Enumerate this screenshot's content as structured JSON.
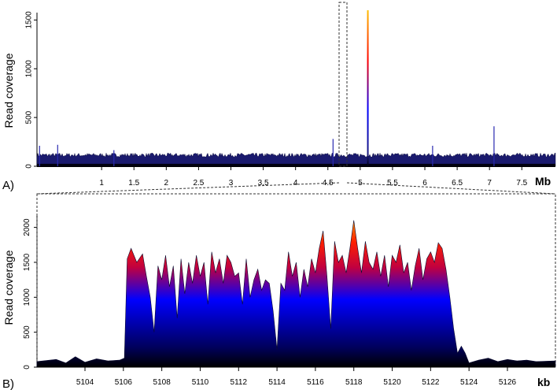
{
  "chart_data": [
    {
      "panel": "A)",
      "type": "area",
      "ylabel": "Read coverage",
      "xunit": "Mb",
      "xlim": [
        0,
        8.02
      ],
      "ylim": [
        0,
        1600
      ],
      "y_ticks": [
        0,
        500,
        1000,
        1500
      ],
      "x_ticks": [
        "1",
        "1.5",
        "2",
        "2.5",
        "3",
        "3.5",
        "4",
        "4.5",
        "5",
        "5.5",
        "6",
        "6.5",
        "7",
        "7.5"
      ],
      "baseline_coverage": 120,
      "spikes": [
        {
          "x": 0.04,
          "y": 210
        },
        {
          "x": 0.32,
          "y": 220
        },
        {
          "x": 1.19,
          "y": 165
        },
        {
          "x": 4.58,
          "y": 280
        },
        {
          "x": 6.12,
          "y": 210
        },
        {
          "x": 7.07,
          "y": 410
        }
      ],
      "peak_region": {
        "start": 5.106,
        "end": 5.123,
        "max": 1600
      },
      "gradient_colors": [
        "#000000",
        "#0000ff",
        "#ff0000",
        "#ffd700"
      ]
    },
    {
      "panel": "B)",
      "type": "area",
      "ylabel": "Read coverage",
      "xunit": "kb",
      "xlim": [
        5101.5,
        5128.5
      ],
      "ylim": [
        0,
        2300
      ],
      "y_ticks": [
        0,
        500,
        1000,
        1500,
        2000
      ],
      "x_ticks": [
        "5104",
        "5106",
        "5108",
        "5110",
        "5112",
        "5114",
        "5116",
        "5118",
        "5120",
        "5122",
        "5124",
        "5126"
      ],
      "x": [
        5101.5,
        5102.5,
        5103.0,
        5103.5,
        5104.0,
        5104.6,
        5105.2,
        5105.8,
        5106.05,
        5106.2,
        5106.4,
        5106.7,
        5107.0,
        5107.2,
        5107.4,
        5107.6,
        5107.8,
        5108.0,
        5108.2,
        5108.4,
        5108.6,
        5108.8,
        5109.0,
        5109.2,
        5109.4,
        5109.6,
        5109.8,
        5110.0,
        5110.2,
        5110.4,
        5110.6,
        5110.8,
        5111.0,
        5111.2,
        5111.4,
        5111.6,
        5111.8,
        5112.0,
        5112.2,
        5112.4,
        5112.6,
        5112.8,
        5113.0,
        5113.2,
        5113.4,
        5113.6,
        5113.8,
        5114.0,
        5114.2,
        5114.4,
        5114.6,
        5114.8,
        5115.0,
        5115.2,
        5115.4,
        5115.6,
        5115.8,
        5116.0,
        5116.2,
        5116.4,
        5116.6,
        5116.8,
        5117.0,
        5117.2,
        5117.4,
        5117.6,
        5117.8,
        5118.0,
        5118.2,
        5118.4,
        5118.6,
        5118.8,
        5119.0,
        5119.2,
        5119.4,
        5119.6,
        5119.8,
        5120.0,
        5120.2,
        5120.4,
        5120.6,
        5120.8,
        5121.0,
        5121.2,
        5121.4,
        5121.6,
        5121.8,
        5122.0,
        5122.2,
        5122.4,
        5122.6,
        5122.8,
        5123.0,
        5123.2,
        5123.4,
        5123.6,
        5123.8,
        5124.0,
        5124.5,
        5125.0,
        5125.5,
        5126.0,
        5126.5,
        5127.0,
        5127.5,
        5128.5
      ],
      "y": [
        80,
        110,
        60,
        150,
        70,
        120,
        90,
        100,
        130,
        1550,
        1700,
        1500,
        1620,
        1300,
        1000,
        500,
        1450,
        1250,
        1600,
        1150,
        1450,
        700,
        1550,
        1050,
        1500,
        1200,
        1600,
        1300,
        1500,
        900,
        1650,
        1350,
        1550,
        1200,
        1600,
        1500,
        1300,
        1350,
        900,
        1550,
        1000,
        1250,
        1400,
        1100,
        1250,
        1200,
        800,
        250,
        1200,
        1100,
        1650,
        1300,
        1500,
        1000,
        1400,
        1150,
        1550,
        1350,
        1700,
        1950,
        1300,
        550,
        1800,
        1500,
        1600,
        1350,
        1700,
        2100,
        1700,
        1350,
        1800,
        1500,
        1400,
        1650,
        1300,
        1600,
        1150,
        1600,
        1500,
        1750,
        1350,
        1500,
        1100,
        1450,
        1700,
        1250,
        1550,
        1650,
        1500,
        1780,
        1700,
        1400,
        1000,
        550,
        200,
        300,
        200,
        60,
        100,
        130,
        80,
        110,
        90,
        100,
        80,
        90
      ],
      "gradient_colors": [
        "#000000",
        "#0000ff",
        "#ff0000",
        "#ffd700"
      ]
    }
  ]
}
